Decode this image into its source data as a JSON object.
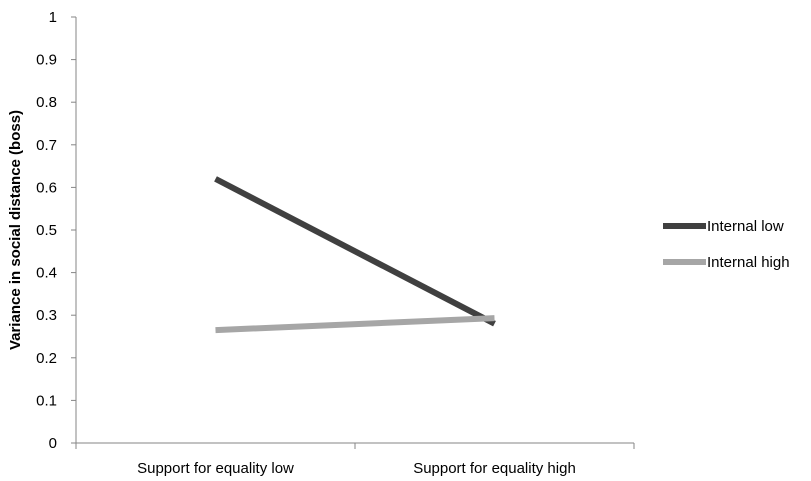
{
  "chart_data": {
    "type": "line",
    "title": "",
    "xlabel": "",
    "ylabel": "Variance in social distance (boss)",
    "ylim": [
      0,
      1
    ],
    "yticks": [
      "0",
      "0.1",
      "0.2",
      "0.3",
      "0.4",
      "0.5",
      "0.6",
      "0.7",
      "0.8",
      "0.9",
      "1"
    ],
    "categories": [
      "Support for equality low",
      "Support for equality high"
    ],
    "series": [
      {
        "name": "Internal low",
        "values": [
          0.62,
          0.28
        ],
        "color": "#404040"
      },
      {
        "name": "Internal high",
        "values": [
          0.265,
          0.293
        ],
        "color": "#a6a6a6"
      }
    ],
    "grid": false,
    "legend_position": "right"
  }
}
